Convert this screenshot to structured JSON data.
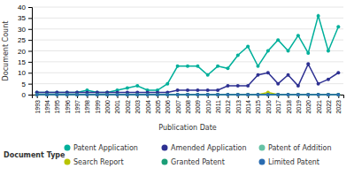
{
  "chart_data": {
    "type": "line",
    "x_label": "Publication Date",
    "y_label": "Document Count",
    "legend_title": "Document Type",
    "x": [
      1993,
      1994,
      1995,
      1996,
      1997,
      1998,
      1999,
      2000,
      2001,
      2002,
      2003,
      2004,
      2005,
      2006,
      2007,
      2008,
      2009,
      2010,
      2011,
      2012,
      2013,
      2014,
      2015,
      2016,
      2017,
      2018,
      2019,
      2020,
      2021,
      2022,
      2023
    ],
    "series": [
      {
        "name": "Patent Application",
        "color": "#00b09b",
        "marker": "circle",
        "values": [
          1,
          1,
          1,
          1,
          1,
          2,
          1,
          1,
          2,
          3,
          4,
          2,
          2,
          5,
          13,
          13,
          13,
          9,
          13,
          12,
          18,
          22,
          13,
          20,
          25,
          20,
          27,
          19,
          36,
          20,
          31
        ]
      },
      {
        "name": "Amended Application",
        "color": "#2e3192",
        "marker": "circle",
        "values": [
          1,
          1,
          1,
          1,
          1,
          1,
          1,
          1,
          1,
          1,
          1,
          1,
          1,
          1,
          2,
          2,
          2,
          2,
          2,
          4,
          4,
          4,
          9,
          10,
          5,
          9,
          4,
          14,
          5,
          7,
          10
        ]
      },
      {
        "name": "Patent of Addition",
        "color": "#66c2a5",
        "marker": "circle",
        "values": [
          0,
          0,
          0,
          0,
          0,
          0,
          0,
          0,
          0,
          0,
          0,
          0,
          0,
          0,
          0,
          0,
          0,
          0,
          0,
          0,
          0,
          0,
          0,
          0,
          0,
          0,
          0,
          0,
          0,
          0,
          0
        ]
      },
      {
        "name": "Search Report",
        "color": "#b8c400",
        "marker": "circle",
        "values": [
          0,
          0,
          0,
          0,
          0,
          0,
          0,
          0,
          0,
          0,
          0,
          0,
          0,
          0,
          0,
          0,
          0,
          0,
          0,
          0,
          0,
          0,
          0,
          1,
          0,
          0,
          0,
          0,
          0,
          0,
          0
        ]
      },
      {
        "name": "Granted Patent",
        "color": "#1b9e77",
        "marker": "circle",
        "values": [
          0,
          0,
          0,
          0,
          0,
          0,
          0,
          0,
          0,
          0,
          0,
          0,
          0,
          0,
          0,
          0,
          0,
          0,
          0,
          0,
          0,
          0,
          0,
          0,
          0,
          0,
          0,
          0,
          0,
          0,
          0
        ]
      },
      {
        "name": "Limited Patent",
        "color": "#2b6cb0",
        "marker": "circle",
        "values": [
          0,
          0,
          0,
          0,
          0,
          0,
          0,
          0,
          0,
          0,
          0,
          0,
          0,
          0,
          0,
          0,
          0,
          0,
          0,
          0,
          0,
          0,
          0,
          0,
          0,
          0,
          0,
          0,
          0,
          0,
          0
        ]
      }
    ],
    "xlim": [
      1992.5,
      2023.5
    ],
    "xticks": [
      1993,
      1994,
      1995,
      1996,
      1997,
      1998,
      1999,
      2000,
      2001,
      2002,
      2003,
      2004,
      2005,
      2006,
      2007,
      2008,
      2009,
      2010,
      2011,
      2012,
      2013,
      2014,
      2015,
      2016,
      2017,
      2018,
      2019,
      2020,
      2021,
      2022,
      2023
    ],
    "ylim": [
      0,
      40
    ],
    "yticks": [
      0,
      5,
      10,
      15,
      20,
      25,
      30,
      35,
      40
    ],
    "grid": true,
    "legend": "bottom"
  }
}
